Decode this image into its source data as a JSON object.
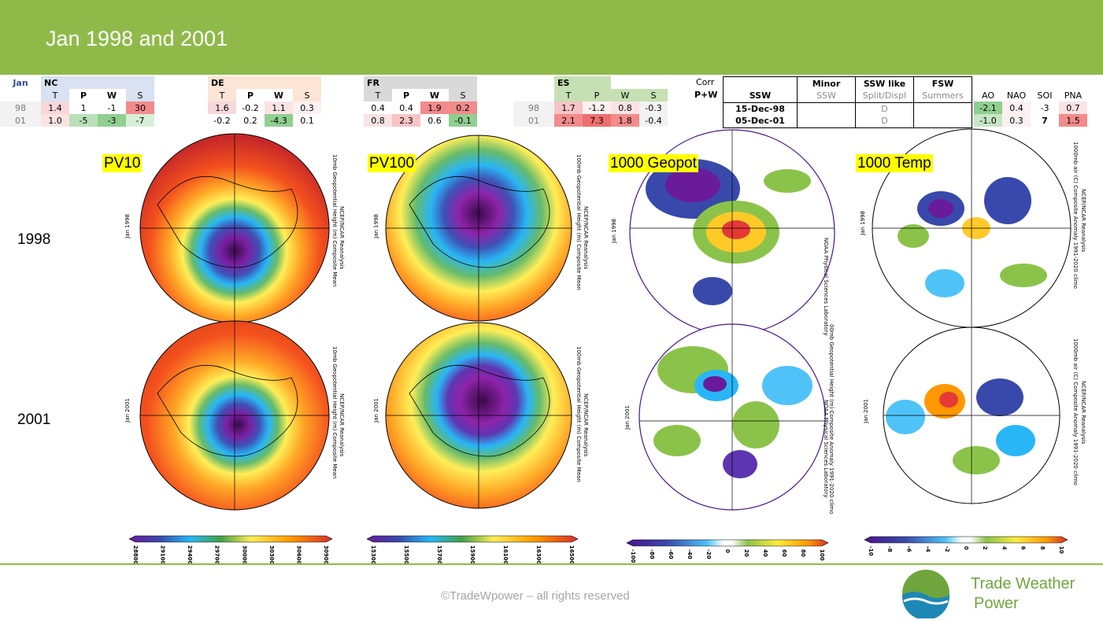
{
  "header": {
    "title": "Jan 1998 and 2001"
  },
  "stats": {
    "jan_label": "Jan",
    "cols": [
      "T",
      "P",
      "W",
      "S"
    ],
    "years": [
      "98",
      "01"
    ],
    "regions": [
      {
        "name": "NC",
        "rows": [
          [
            "1.4",
            "1",
            "-1",
            "30"
          ],
          [
            "1.0",
            "-5",
            "-3",
            "-7"
          ]
        ]
      },
      {
        "name": "DE",
        "rows": [
          [
            "1.6",
            "-0.2",
            "1.1",
            "0.3"
          ],
          [
            "-0.2",
            "0.2",
            "-4.3",
            "0.1"
          ]
        ]
      },
      {
        "name": "FR",
        "rows": [
          [
            "0.4",
            "0.4",
            "1.9",
            "0.2"
          ],
          [
            "0.8",
            "2.3",
            "0.6",
            "-0.1"
          ]
        ]
      },
      {
        "name": "ES",
        "rows": [
          [
            "1.7",
            "-1.2",
            "0.8",
            "-0.3"
          ],
          [
            "2.1",
            "7.3",
            "1.8",
            "-0.4"
          ]
        ]
      }
    ],
    "corr_label": "Corr",
    "pw_label": "P+W"
  },
  "ssw": {
    "headers": [
      "SSW",
      "Minor",
      "SSW like",
      "FSW"
    ],
    "subheaders": [
      "",
      "SSW",
      "Split/Displ",
      "Summers"
    ],
    "rows": [
      [
        "15-Dec-98",
        "",
        "D",
        ""
      ],
      [
        "05-Dec-01",
        "",
        "D",
        ""
      ]
    ]
  },
  "indices": {
    "headers": [
      "AO",
      "NAO",
      "SOI",
      "PNA"
    ],
    "rows": [
      [
        "-2.1",
        "0.4",
        "-3",
        "0.7"
      ],
      [
        "-1.0",
        "0.3",
        "7",
        "1.5"
      ]
    ]
  },
  "maps": {
    "labels": [
      "PV10",
      "PV100",
      "1000 Geopot",
      "1000 Temp"
    ],
    "years": [
      "1998",
      "2001"
    ],
    "jan_labels": [
      "Jan 1998",
      "Jan 2001"
    ],
    "side_texts": [
      "10mb Geopotential Height (m) Composite Mean",
      "100mb Geopotential Height (m) Composite Mean",
      "00mb Geopotential Height (m) Composite Anomaly 1991-2020 climo",
      "1000mb air (C) Composite Anomaly 1991-2020 climo"
    ],
    "source": "NCEP/NCAR Reanalysis",
    "lab": "NOAA Physical Sciences Laboratory"
  },
  "colorbars": [
    {
      "ticks": [
        "28800",
        "29100",
        "29400",
        "29700",
        "30000",
        "30300",
        "30600",
        "30900"
      ]
    },
    {
      "ticks": [
        "15300",
        "15500",
        "15700",
        "15900",
        "16100",
        "16300",
        "16500"
      ]
    },
    {
      "ticks": [
        "-100",
        "-80",
        "-60",
        "-40",
        "-20",
        "0",
        "20",
        "40",
        "60",
        "80",
        "100"
      ]
    },
    {
      "ticks": [
        "-10",
        "-8",
        "-6",
        "-4",
        "-2",
        "0",
        "2",
        "4",
        "6",
        "8",
        "10"
      ]
    }
  ],
  "colors": {
    "banner": "#8fba4a",
    "warm": "#f4a0a0",
    "cool": "#a8d8a8",
    "brand": "#6fa53c"
  },
  "footer": {
    "copyright": "©TradeWpower – all rights reserved",
    "brand_line1": "Trade Weather",
    "brand_line2": "Power"
  }
}
